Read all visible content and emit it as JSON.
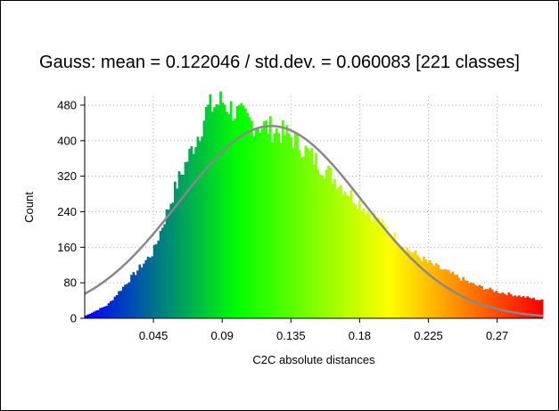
{
  "chart_data": {
    "type": "bar",
    "title": "Gauss: mean = 0.122046 / std.dev. = 0.060083 [221 classes]",
    "xlabel": "C2C absolute distances",
    "ylabel": "Count",
    "xlim": [
      0.0,
      0.3
    ],
    "ylim": [
      0,
      500
    ],
    "xticks": [
      0.045,
      0.09,
      0.135,
      0.18,
      0.225,
      0.27
    ],
    "xtick_labels": [
      "0.045",
      "0.09",
      "0.135",
      "0.18",
      "0.225",
      "0.27"
    ],
    "yticks": [
      0,
      80,
      160,
      240,
      320,
      400,
      480
    ],
    "ytick_labels": [
      "0",
      "80",
      "160",
      "240",
      "320",
      "400",
      "480"
    ],
    "grid": true,
    "classes": 221,
    "bins_x": [
      0.0,
      0.015,
      0.03,
      0.045,
      0.06,
      0.075,
      0.08,
      0.09,
      0.1,
      0.11,
      0.12,
      0.135,
      0.15,
      0.165,
      0.18,
      0.195,
      0.21,
      0.225,
      0.24,
      0.255,
      0.27,
      0.285,
      0.3
    ],
    "bins_count": [
      5,
      30,
      90,
      150,
      300,
      420,
      470,
      490,
      460,
      440,
      430,
      410,
      360,
      310,
      260,
      210,
      160,
      125,
      100,
      75,
      60,
      50,
      40
    ],
    "gauss_curve": {
      "mean": 0.122046,
      "std_dev": 0.060083,
      "peak": 433
    },
    "colors": {
      "curve": "#888888",
      "grid": "#b4b4b4",
      "colormap": [
        "#0000ff",
        "#00ff00",
        "#ffff00",
        "#ff0000"
      ]
    }
  }
}
